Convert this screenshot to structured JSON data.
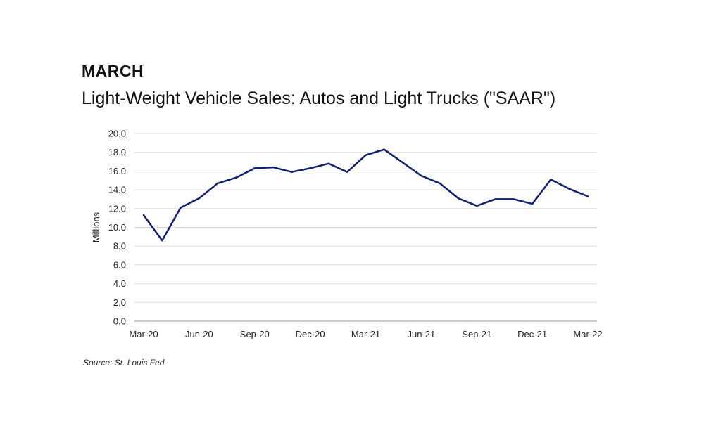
{
  "header": {
    "heading": "MARCH"
  },
  "footer": {
    "source": "Source: St. Louis Fed"
  },
  "colors": {
    "line": "#0d1f6e",
    "grid": "#dcdcdc"
  },
  "chart_data": {
    "type": "line",
    "title": "Light-Weight Vehicle Sales: Autos and Light Trucks (\"SAAR\")",
    "xlabel": "",
    "ylabel": "Millions",
    "ylim": [
      0,
      20
    ],
    "y_ticks": [
      "0.0",
      "2.0",
      "4.0",
      "6.0",
      "8.0",
      "10.0",
      "12.0",
      "14.0",
      "16.0",
      "18.0",
      "20.0"
    ],
    "x_tick_labels": [
      "Mar-20",
      "Jun-20",
      "Sep-20",
      "Dec-20",
      "Mar-21",
      "Jun-21",
      "Sep-21",
      "Dec-21",
      "Mar-22"
    ],
    "x_tick_index": [
      0,
      3,
      6,
      9,
      12,
      15,
      18,
      21,
      24
    ],
    "grid": true,
    "legend": "none",
    "series": [
      {
        "name": "Light-Weight Vehicle Sales",
        "x": [
          "Mar-20",
          "Apr-20",
          "May-20",
          "Jun-20",
          "Jul-20",
          "Aug-20",
          "Sep-20",
          "Oct-20",
          "Nov-20",
          "Dec-20",
          "Jan-21",
          "Feb-21",
          "Mar-21",
          "Apr-21",
          "May-21",
          "Jun-21",
          "Jul-21",
          "Aug-21",
          "Sep-21",
          "Oct-21",
          "Nov-21",
          "Dec-21",
          "Jan-22",
          "Feb-22",
          "Mar-22"
        ],
        "values": [
          11.3,
          8.6,
          12.1,
          13.1,
          14.7,
          15.3,
          16.3,
          16.4,
          15.9,
          16.3,
          16.8,
          15.9,
          17.7,
          18.3,
          16.9,
          15.5,
          14.7,
          13.1,
          12.3,
          13.0,
          13.0,
          12.5,
          15.1,
          14.1,
          13.3
        ]
      }
    ]
  }
}
